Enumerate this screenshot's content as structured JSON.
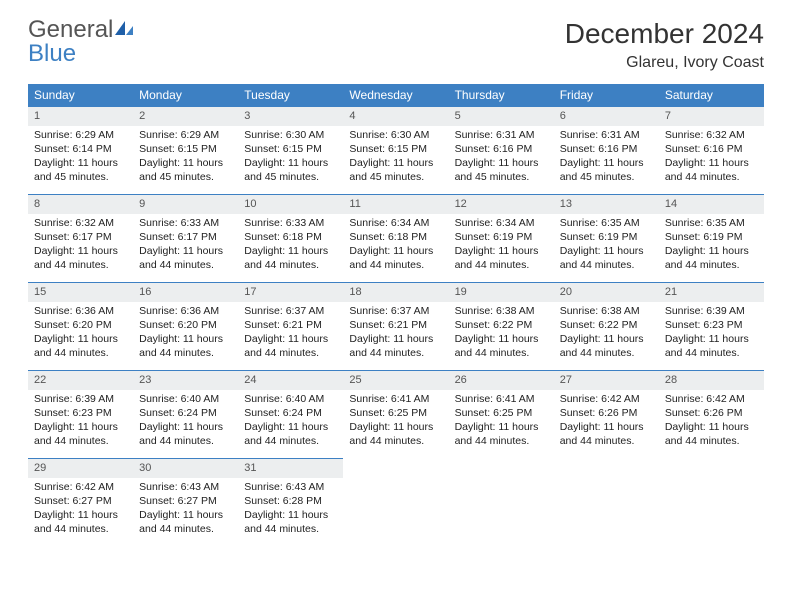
{
  "brand": {
    "word1": "General",
    "word2": "Blue"
  },
  "title": "December 2024",
  "location": "Glareu, Ivory Coast",
  "colors": {
    "header_bg": "#3d80c3",
    "header_text": "#ffffff",
    "daynum_bg": "#eceeef",
    "row_border": "#3d80c3",
    "logo_gray": "#555555",
    "logo_blue": "#3d80c3"
  },
  "fonts": {
    "title_size_pt": 21,
    "location_size_pt": 12,
    "dayheader_size_pt": 9,
    "cell_size_pt": 8
  },
  "day_headers": [
    "Sunday",
    "Monday",
    "Tuesday",
    "Wednesday",
    "Thursday",
    "Friday",
    "Saturday"
  ],
  "weeks": [
    [
      {
        "n": "1",
        "sr": "Sunrise: 6:29 AM",
        "ss": "Sunset: 6:14 PM",
        "d1": "Daylight: 11 hours",
        "d2": "and 45 minutes."
      },
      {
        "n": "2",
        "sr": "Sunrise: 6:29 AM",
        "ss": "Sunset: 6:15 PM",
        "d1": "Daylight: 11 hours",
        "d2": "and 45 minutes."
      },
      {
        "n": "3",
        "sr": "Sunrise: 6:30 AM",
        "ss": "Sunset: 6:15 PM",
        "d1": "Daylight: 11 hours",
        "d2": "and 45 minutes."
      },
      {
        "n": "4",
        "sr": "Sunrise: 6:30 AM",
        "ss": "Sunset: 6:15 PM",
        "d1": "Daylight: 11 hours",
        "d2": "and 45 minutes."
      },
      {
        "n": "5",
        "sr": "Sunrise: 6:31 AM",
        "ss": "Sunset: 6:16 PM",
        "d1": "Daylight: 11 hours",
        "d2": "and 45 minutes."
      },
      {
        "n": "6",
        "sr": "Sunrise: 6:31 AM",
        "ss": "Sunset: 6:16 PM",
        "d1": "Daylight: 11 hours",
        "d2": "and 45 minutes."
      },
      {
        "n": "7",
        "sr": "Sunrise: 6:32 AM",
        "ss": "Sunset: 6:16 PM",
        "d1": "Daylight: 11 hours",
        "d2": "and 44 minutes."
      }
    ],
    [
      {
        "n": "8",
        "sr": "Sunrise: 6:32 AM",
        "ss": "Sunset: 6:17 PM",
        "d1": "Daylight: 11 hours",
        "d2": "and 44 minutes."
      },
      {
        "n": "9",
        "sr": "Sunrise: 6:33 AM",
        "ss": "Sunset: 6:17 PM",
        "d1": "Daylight: 11 hours",
        "d2": "and 44 minutes."
      },
      {
        "n": "10",
        "sr": "Sunrise: 6:33 AM",
        "ss": "Sunset: 6:18 PM",
        "d1": "Daylight: 11 hours",
        "d2": "and 44 minutes."
      },
      {
        "n": "11",
        "sr": "Sunrise: 6:34 AM",
        "ss": "Sunset: 6:18 PM",
        "d1": "Daylight: 11 hours",
        "d2": "and 44 minutes."
      },
      {
        "n": "12",
        "sr": "Sunrise: 6:34 AM",
        "ss": "Sunset: 6:19 PM",
        "d1": "Daylight: 11 hours",
        "d2": "and 44 minutes."
      },
      {
        "n": "13",
        "sr": "Sunrise: 6:35 AM",
        "ss": "Sunset: 6:19 PM",
        "d1": "Daylight: 11 hours",
        "d2": "and 44 minutes."
      },
      {
        "n": "14",
        "sr": "Sunrise: 6:35 AM",
        "ss": "Sunset: 6:19 PM",
        "d1": "Daylight: 11 hours",
        "d2": "and 44 minutes."
      }
    ],
    [
      {
        "n": "15",
        "sr": "Sunrise: 6:36 AM",
        "ss": "Sunset: 6:20 PM",
        "d1": "Daylight: 11 hours",
        "d2": "and 44 minutes."
      },
      {
        "n": "16",
        "sr": "Sunrise: 6:36 AM",
        "ss": "Sunset: 6:20 PM",
        "d1": "Daylight: 11 hours",
        "d2": "and 44 minutes."
      },
      {
        "n": "17",
        "sr": "Sunrise: 6:37 AM",
        "ss": "Sunset: 6:21 PM",
        "d1": "Daylight: 11 hours",
        "d2": "and 44 minutes."
      },
      {
        "n": "18",
        "sr": "Sunrise: 6:37 AM",
        "ss": "Sunset: 6:21 PM",
        "d1": "Daylight: 11 hours",
        "d2": "and 44 minutes."
      },
      {
        "n": "19",
        "sr": "Sunrise: 6:38 AM",
        "ss": "Sunset: 6:22 PM",
        "d1": "Daylight: 11 hours",
        "d2": "and 44 minutes."
      },
      {
        "n": "20",
        "sr": "Sunrise: 6:38 AM",
        "ss": "Sunset: 6:22 PM",
        "d1": "Daylight: 11 hours",
        "d2": "and 44 minutes."
      },
      {
        "n": "21",
        "sr": "Sunrise: 6:39 AM",
        "ss": "Sunset: 6:23 PM",
        "d1": "Daylight: 11 hours",
        "d2": "and 44 minutes."
      }
    ],
    [
      {
        "n": "22",
        "sr": "Sunrise: 6:39 AM",
        "ss": "Sunset: 6:23 PM",
        "d1": "Daylight: 11 hours",
        "d2": "and 44 minutes."
      },
      {
        "n": "23",
        "sr": "Sunrise: 6:40 AM",
        "ss": "Sunset: 6:24 PM",
        "d1": "Daylight: 11 hours",
        "d2": "and 44 minutes."
      },
      {
        "n": "24",
        "sr": "Sunrise: 6:40 AM",
        "ss": "Sunset: 6:24 PM",
        "d1": "Daylight: 11 hours",
        "d2": "and 44 minutes."
      },
      {
        "n": "25",
        "sr": "Sunrise: 6:41 AM",
        "ss": "Sunset: 6:25 PM",
        "d1": "Daylight: 11 hours",
        "d2": "and 44 minutes."
      },
      {
        "n": "26",
        "sr": "Sunrise: 6:41 AM",
        "ss": "Sunset: 6:25 PM",
        "d1": "Daylight: 11 hours",
        "d2": "and 44 minutes."
      },
      {
        "n": "27",
        "sr": "Sunrise: 6:42 AM",
        "ss": "Sunset: 6:26 PM",
        "d1": "Daylight: 11 hours",
        "d2": "and 44 minutes."
      },
      {
        "n": "28",
        "sr": "Sunrise: 6:42 AM",
        "ss": "Sunset: 6:26 PM",
        "d1": "Daylight: 11 hours",
        "d2": "and 44 minutes."
      }
    ],
    [
      {
        "n": "29",
        "sr": "Sunrise: 6:42 AM",
        "ss": "Sunset: 6:27 PM",
        "d1": "Daylight: 11 hours",
        "d2": "and 44 minutes."
      },
      {
        "n": "30",
        "sr": "Sunrise: 6:43 AM",
        "ss": "Sunset: 6:27 PM",
        "d1": "Daylight: 11 hours",
        "d2": "and 44 minutes."
      },
      {
        "n": "31",
        "sr": "Sunrise: 6:43 AM",
        "ss": "Sunset: 6:28 PM",
        "d1": "Daylight: 11 hours",
        "d2": "and 44 minutes."
      },
      {
        "empty": true
      },
      {
        "empty": true
      },
      {
        "empty": true
      },
      {
        "empty": true
      }
    ]
  ]
}
